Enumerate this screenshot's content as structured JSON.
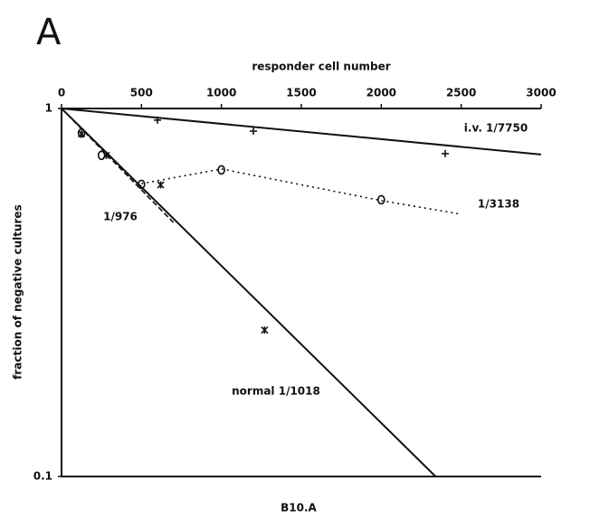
{
  "chart_data": {
    "type": "scatter",
    "title": "A",
    "x_label": "responder cell number",
    "y_label": "fraction of negative cultures",
    "caption": "B10.A",
    "xlim": [
      0,
      3000
    ],
    "xticks": [
      0,
      500,
      1000,
      1500,
      2000,
      2500,
      3000
    ],
    "ylim": [
      0.1,
      1
    ],
    "yticks": [
      0.1,
      1
    ],
    "y_scale": "log",
    "color": "#111111",
    "series": [
      {
        "line": "solid",
        "marker": "none",
        "x": [
          0,
          3000
        ],
        "values": [
          1,
          0.75
        ]
      },
      {
        "line": "solid",
        "marker": "none",
        "x": [
          0,
          2340
        ],
        "values": [
          1,
          0.1
        ]
      },
      {
        "line": "dashed",
        "marker": "none",
        "x": [
          0,
          700
        ],
        "values": [
          1,
          0.49
        ]
      },
      {
        "line": "dotted",
        "marker": "none",
        "x": [
          500,
          1000,
          2000,
          2500
        ],
        "values": [
          0.625,
          0.685,
          0.562,
          0.516
        ]
      },
      {
        "line": "none",
        "marker": "plus",
        "x": [
          600,
          1200,
          2400
        ],
        "values": [
          0.93,
          0.868,
          0.754
        ]
      },
      {
        "line": "none",
        "marker": "circle",
        "x": [
          125,
          250,
          500,
          1000,
          2000
        ],
        "values": [
          0.858,
          0.746,
          0.622,
          0.681,
          0.565
        ]
      },
      {
        "line": "none",
        "marker": "star",
        "x": [
          125,
          280,
          620,
          1270
        ],
        "values": [
          0.853,
          0.746,
          0.62,
          0.25
        ]
      }
    ],
    "annotations": [
      "i.v. 1/7750",
      "1/3138",
      "1/976",
      "normal 1/1018"
    ]
  }
}
